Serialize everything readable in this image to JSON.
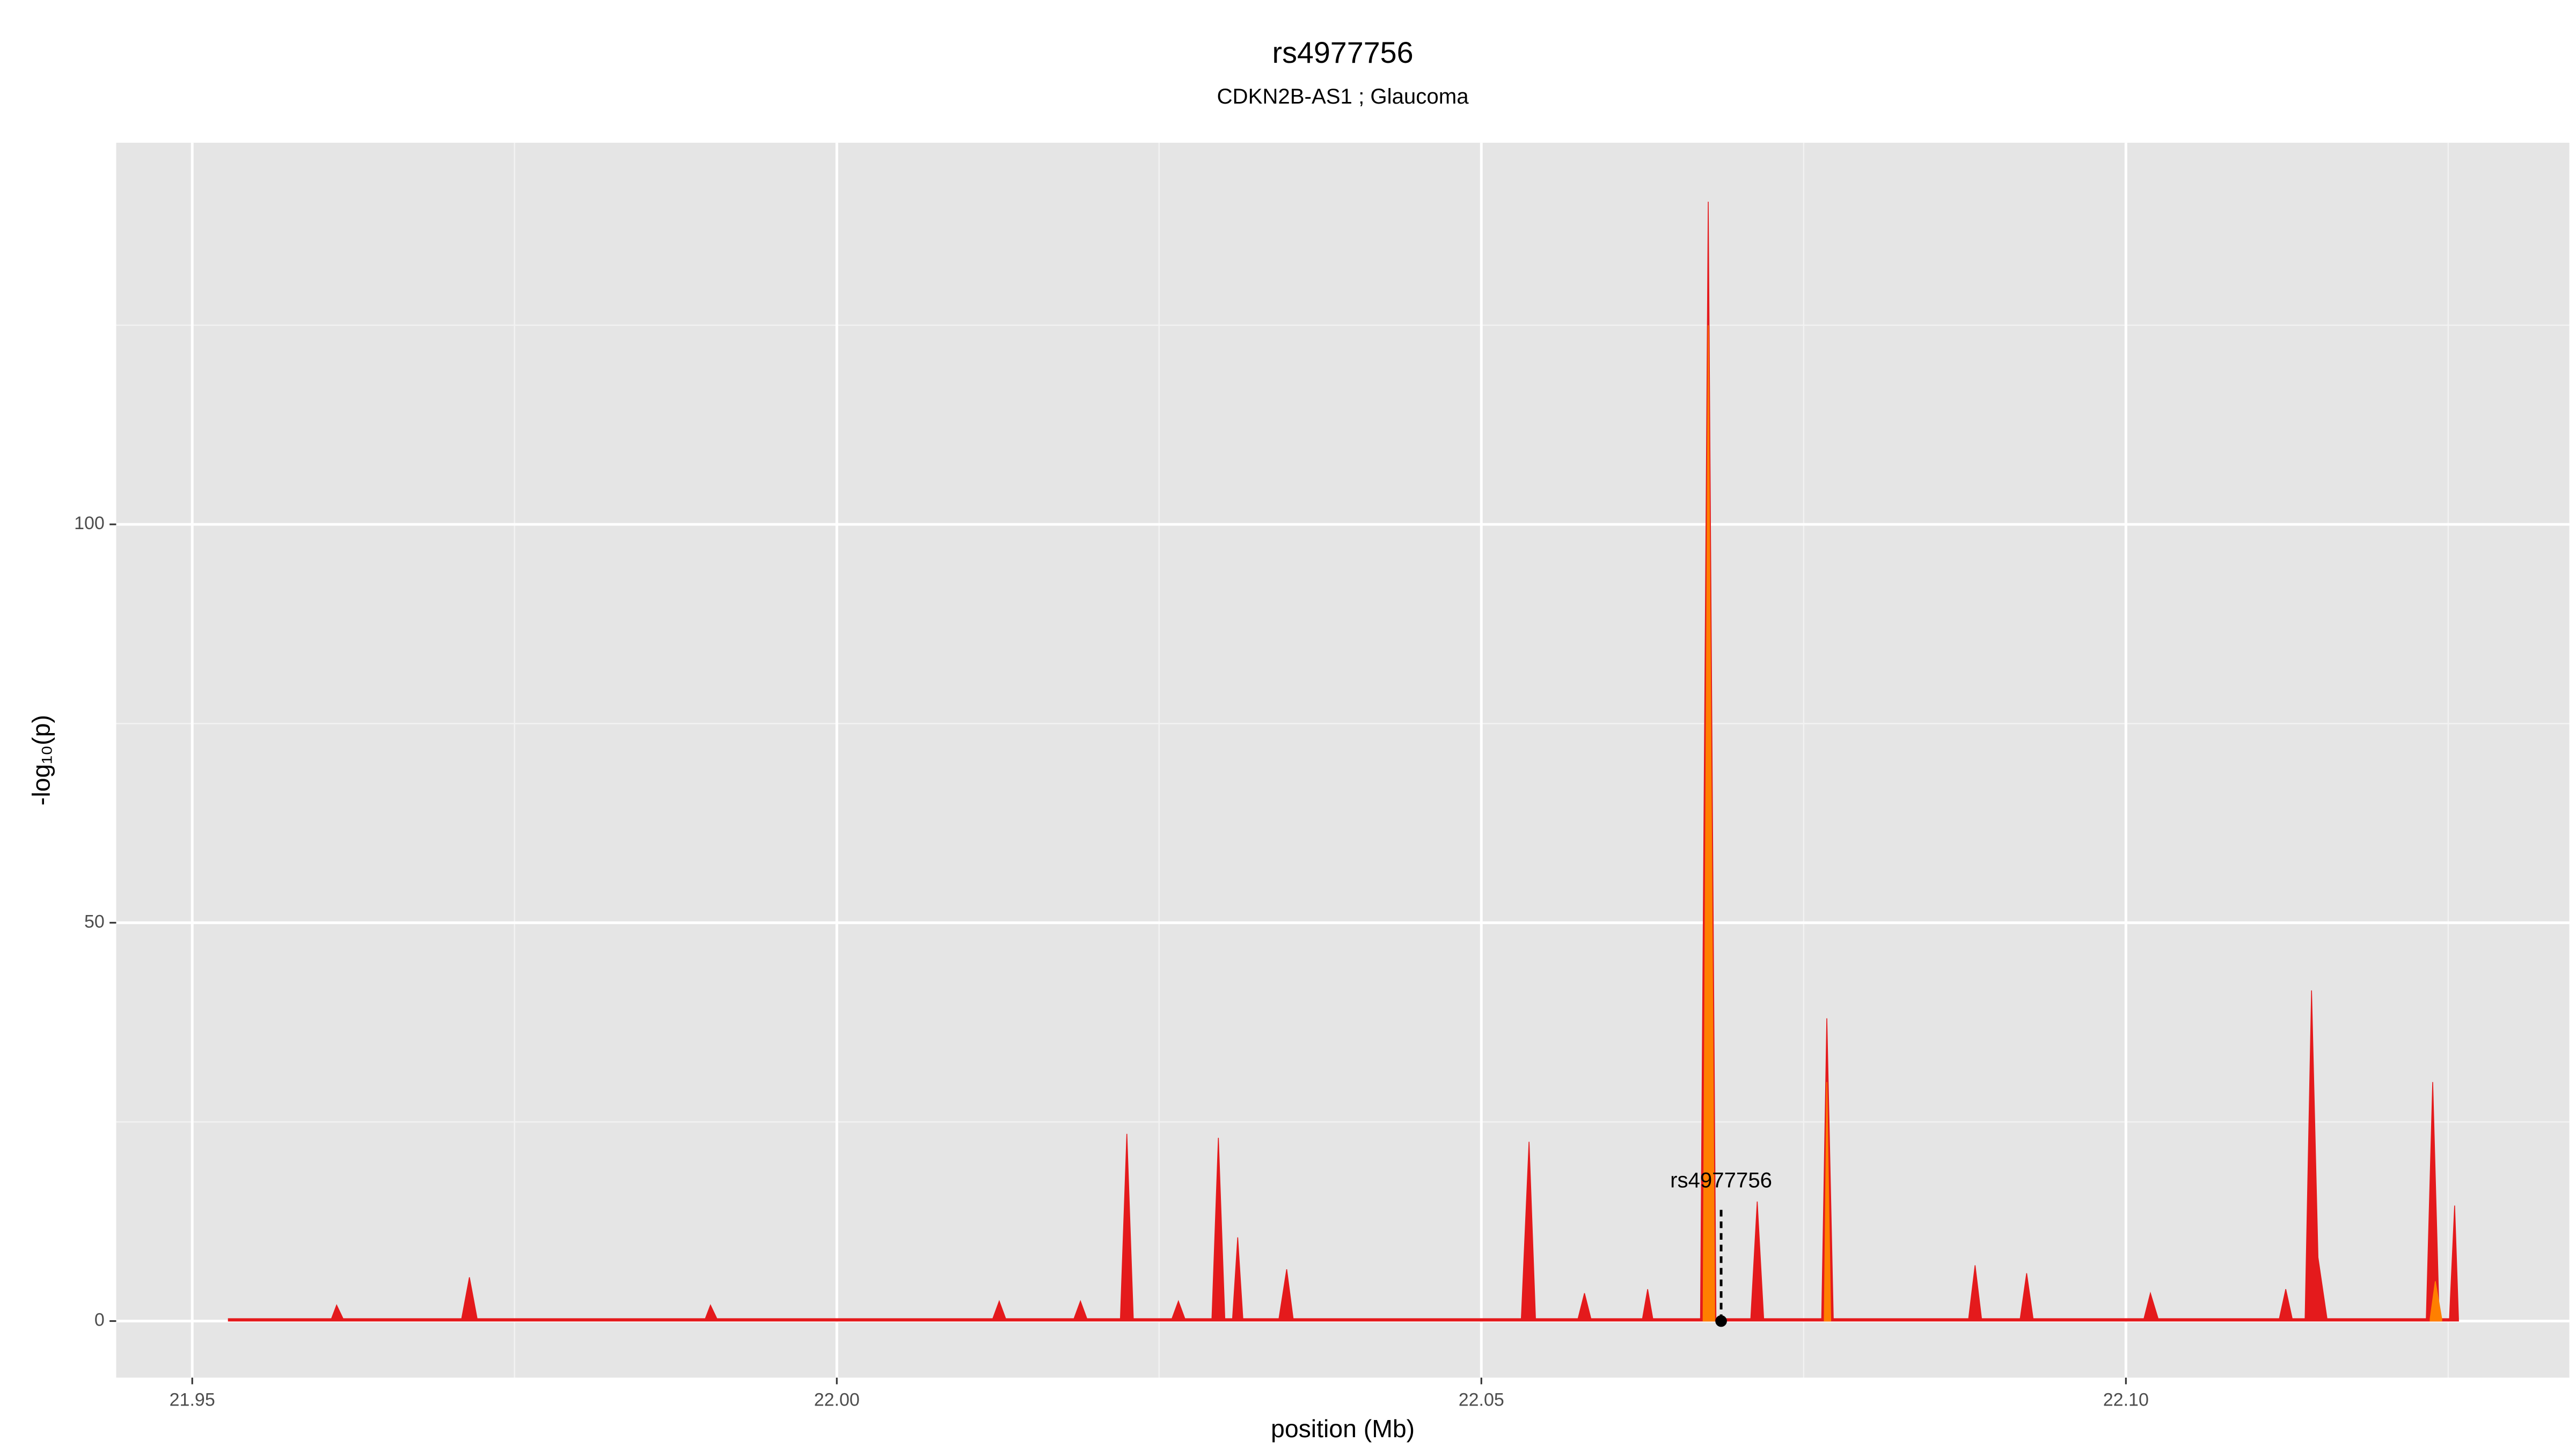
{
  "chart_data": {
    "type": "area",
    "title": "rs4977756",
    "subtitle": "CDKN2B-AS1 ; Glaucoma",
    "x_label": "position (Mb)",
    "y_label": "-log₁₀(p)",
    "xlim": [
      21.9441,
      22.1344
    ],
    "ylim": [
      -7.1,
      147.9
    ],
    "xticks": [
      {
        "value": 21.95,
        "label": "21.95"
      },
      {
        "value": 22.0,
        "label": "22.00"
      },
      {
        "value": 22.05,
        "label": "22.05"
      },
      {
        "value": 22.1,
        "label": "22.10"
      }
    ],
    "xminor": [
      21.975,
      22.025,
      22.075,
      22.125
    ],
    "yticks": [
      0,
      50,
      100
    ],
    "yminor": [
      25,
      75,
      125
    ],
    "grid": true,
    "series": [
      {
        "color": "#e41a1c",
        "x": [
          21.9528,
          21.9608,
          21.9612,
          21.9617,
          21.9709,
          21.9715,
          21.9721,
          21.9898,
          21.9902,
          21.9907,
          22.0121,
          22.0126,
          22.0131,
          22.0184,
          22.0189,
          22.0194,
          22.022,
          22.0225,
          22.023,
          22.026,
          22.0265,
          22.027,
          22.0291,
          22.0296,
          22.0301,
          22.0307,
          22.0311,
          22.0315,
          22.0343,
          22.0349,
          22.0354,
          22.0531,
          22.0537,
          22.0542,
          22.0575,
          22.058,
          22.0585,
          22.0625,
          22.0629,
          22.0633,
          22.067,
          22.0676,
          22.0682,
          22.0709,
          22.0714,
          22.0719,
          22.0764,
          22.0768,
          22.0773,
          22.0878,
          22.0883,
          22.0888,
          22.0918,
          22.0923,
          22.0928,
          22.1014,
          22.1019,
          22.1025,
          22.1119,
          22.1124,
          22.1129,
          22.1139,
          22.1144,
          22.1149,
          22.1156,
          22.1233,
          22.1238,
          22.1243,
          22.1251,
          22.1255,
          22.1258
        ],
        "values": [
          0.3,
          0.3,
          2,
          0.3,
          0.3,
          5.5,
          0.3,
          0.3,
          2,
          0.3,
          0.3,
          2.5,
          0.3,
          0.3,
          2.5,
          0.3,
          0.3,
          23.5,
          0.3,
          0.3,
          2.5,
          0.3,
          0.3,
          23,
          0.3,
          0.3,
          10.5,
          0.3,
          0.3,
          6.5,
          0.3,
          0.3,
          22.5,
          0.3,
          0.3,
          3.5,
          0.3,
          0.3,
          4,
          0.3,
          0.3,
          140.5,
          0.3,
          0.3,
          15,
          0.3,
          0.3,
          38,
          0.3,
          0.3,
          7,
          0.3,
          0.3,
          6,
          0.3,
          0.3,
          3.5,
          0.3,
          0.3,
          4,
          0.3,
          0.3,
          41.5,
          8,
          0.3,
          0.3,
          30,
          0.3,
          0.3,
          14.5,
          0.3
        ]
      },
      {
        "color": "#ff7f00",
        "x": [
          22.0672,
          22.0676,
          22.0681,
          null,
          22.0766,
          22.0768,
          22.0771,
          null,
          22.1236,
          22.124,
          22.1245
        ],
        "values": [
          0.3,
          125,
          0.3,
          null,
          0.3,
          30,
          0.3,
          null,
          0.3,
          5,
          0.3
        ]
      }
    ],
    "annotation": {
      "text": "rs4977756",
      "x": 22.0686,
      "y": 0
    }
  }
}
